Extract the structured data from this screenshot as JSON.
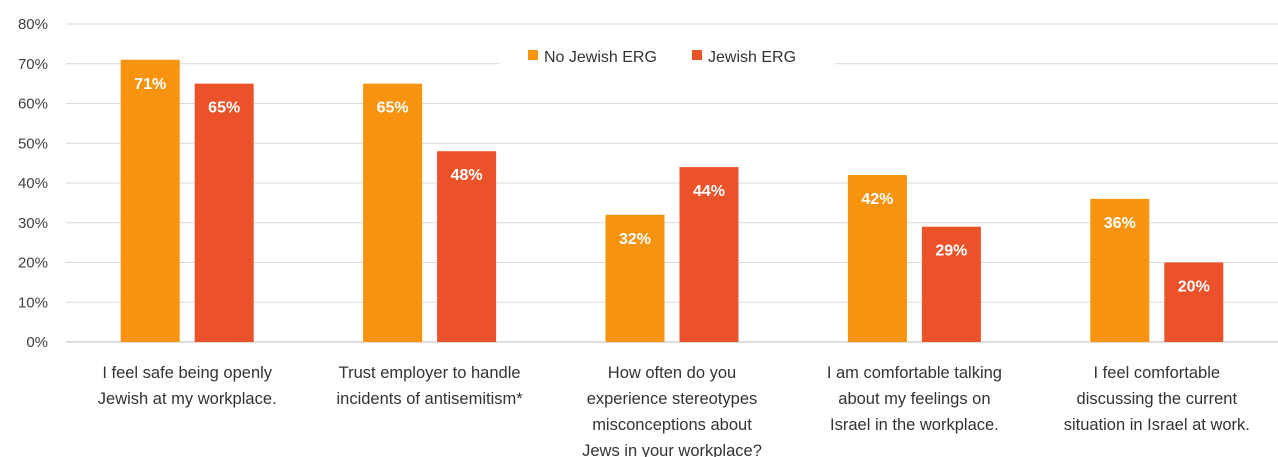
{
  "chart_data": {
    "type": "bar",
    "categories": [
      [
        "I feel safe being openly",
        "Jewish at my workplace."
      ],
      [
        "Trust employer to handle",
        "incidents of antisemitism*"
      ],
      [
        "How often do you",
        "experience stereotypes",
        "misconceptions about",
        "Jews in your workplace?"
      ],
      [
        "I am comfortable talking",
        "about my feelings on",
        "Israel in the workplace."
      ],
      [
        "I feel comfortable",
        "discussing the current",
        "situation in Israel at work."
      ]
    ],
    "series": [
      {
        "name": "No Jewish ERG",
        "color": "#F7930E",
        "values": [
          71,
          65,
          32,
          42,
          36
        ],
        "labels": [
          "71%",
          "65%",
          "32%",
          "42%",
          "36%"
        ]
      },
      {
        "name": "Jewish ERG",
        "color": "#EC5229",
        "values": [
          65,
          48,
          44,
          29,
          20
        ],
        "labels": [
          "65%",
          "48%",
          "44%",
          "29%",
          "20%"
        ]
      }
    ],
    "ylim": [
      0,
      80
    ],
    "yticks": [
      "0%",
      "10%",
      "20%",
      "30%",
      "40%",
      "50%",
      "60%",
      "70%",
      "80%"
    ],
    "grid": true,
    "legend_position": "top-center",
    "gridline_color": "#D9D9D9"
  }
}
